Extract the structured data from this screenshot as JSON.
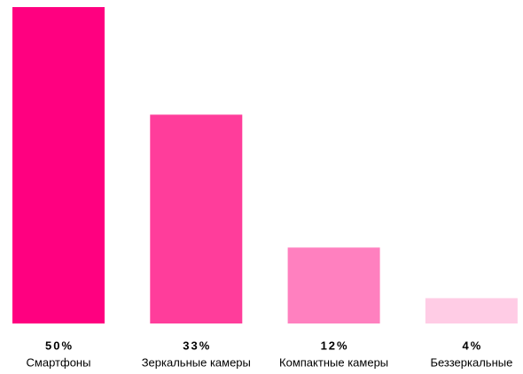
{
  "chart_data": {
    "type": "bar",
    "categories": [
      "Смартфоны",
      "Зеркальные камеры",
      "Компактные камеры",
      "Беззеркальные"
    ],
    "values": [
      50,
      33,
      12,
      4
    ],
    "value_labels": [
      "50%",
      "33%",
      "12%",
      "4%"
    ],
    "colors": [
      "#ff0080",
      "#ff3d9b",
      "#ff80bf",
      "#ffcce5"
    ]
  }
}
